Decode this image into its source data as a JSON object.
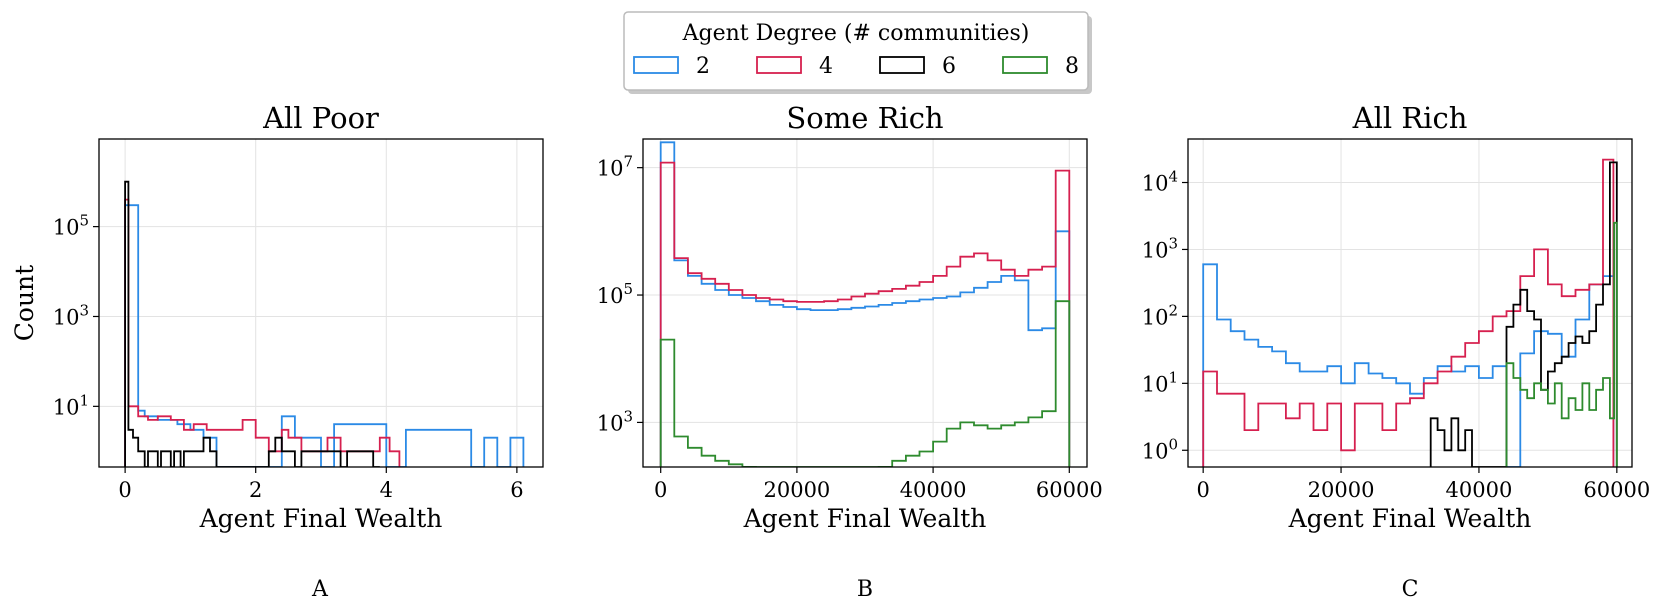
{
  "legend": {
    "title": "Agent Degree (# communities)",
    "placement": "top-center",
    "entries": [
      {
        "label": "2",
        "color": "#2b8ae6"
      },
      {
        "label": "4",
        "color": "#d6204f"
      },
      {
        "label": "6",
        "color": "#000000"
      },
      {
        "label": "8",
        "color": "#2e8b2e"
      }
    ]
  },
  "chart_data": [
    {
      "type": "step-histogram",
      "title": "All Poor",
      "xlabel": "Agent Final Wealth",
      "ylabel": "Count",
      "panel_label": "A",
      "yscale": "log",
      "grid": true,
      "xlim": [
        -0.4,
        6.4
      ],
      "ylim_log10": [
        -0.35,
        6.95
      ],
      "xticks": [
        {
          "v": 0,
          "t": "0"
        },
        {
          "v": 2,
          "t": "2"
        },
        {
          "v": 4,
          "t": "4"
        },
        {
          "v": 6,
          "t": "6"
        }
      ],
      "yticks": [
        {
          "e": 1,
          "t": "10^1"
        },
        {
          "e": 3,
          "t": "10^3"
        },
        {
          "e": 5,
          "t": "10^5"
        }
      ],
      "series": [
        {
          "name": "2",
          "color": "#2b8ae6",
          "edges": [
            0,
            0.2,
            0.3,
            0.5,
            0.8,
            1.0,
            1.2,
            1.4,
            2.2,
            2.4,
            2.6,
            3.0,
            3.2,
            4.0,
            4.3,
            5.3,
            5.5,
            5.7,
            5.9,
            6.1
          ],
          "counts": [
            300000,
            8,
            6,
            5,
            4,
            3,
            2,
            0,
            0,
            6,
            2,
            0,
            4,
            0,
            3,
            0,
            2,
            0,
            2
          ]
        },
        {
          "name": "4",
          "color": "#d6204f",
          "edges": [
            0,
            0.05,
            0.2,
            0.35,
            0.5,
            0.7,
            0.9,
            1.05,
            1.25,
            1.6,
            1.8,
            2.0,
            2.2,
            2.4,
            2.5,
            2.7,
            2.9,
            3.1,
            3.3,
            3.5,
            3.7,
            3.9,
            4.05,
            4.2
          ],
          "counts": [
            400000,
            10,
            6,
            5,
            6,
            5,
            3,
            4,
            3,
            3,
            5,
            2,
            1,
            3,
            2,
            1,
            1,
            2,
            1,
            1,
            1,
            2,
            1
          ]
        },
        {
          "name": "6",
          "color": "#000000",
          "edges": [
            0,
            0.05,
            0.12,
            0.2,
            0.3,
            0.35,
            0.5,
            0.55,
            0.7,
            0.75,
            0.85,
            0.9,
            1.2,
            1.3,
            1.4,
            2.2,
            2.3,
            2.4,
            2.6,
            2.7,
            3.3,
            3.4,
            3.8,
            3.9
          ],
          "counts": [
            1000000,
            3,
            2,
            1,
            0,
            1,
            0,
            1,
            0,
            1,
            0,
            1,
            2,
            1,
            0,
            1,
            2,
            1,
            0,
            1,
            0,
            1,
            0
          ]
        }
      ]
    },
    {
      "type": "step-histogram",
      "title": "Some Rich",
      "xlabel": "Agent Final Wealth",
      "ylabel": "",
      "panel_label": "B",
      "yscale": "log",
      "grid": true,
      "xlim": [
        -2600,
        62600
      ],
      "ylim_log10": [
        2.3,
        7.45
      ],
      "xticks": [
        {
          "v": 0,
          "t": "0"
        },
        {
          "v": 20000,
          "t": "20000"
        },
        {
          "v": 40000,
          "t": "40000"
        },
        {
          "v": 60000,
          "t": "60000"
        }
      ],
      "yticks": [
        {
          "e": 3,
          "t": "10^3"
        },
        {
          "e": 5,
          "t": "10^5"
        },
        {
          "e": 7,
          "t": "10^7"
        }
      ],
      "series": [
        {
          "name": "2",
          "color": "#2b8ae6",
          "bin_start": 0,
          "bin_width": 2000,
          "counts": [
            25000000,
            350000,
            200000,
            150000,
            120000,
            100000,
            90000,
            80000,
            70000,
            65000,
            60000,
            58000,
            58000,
            60000,
            63000,
            66000,
            70000,
            75000,
            80000,
            85000,
            90000,
            95000,
            110000,
            130000,
            160000,
            200000,
            170000,
            28000,
            30000,
            1000000
          ]
        },
        {
          "name": "4",
          "color": "#d6204f",
          "bin_start": 0,
          "bin_width": 2000,
          "counts": [
            12000000,
            380000,
            220000,
            180000,
            150000,
            120000,
            100000,
            90000,
            85000,
            80000,
            78000,
            78000,
            80000,
            85000,
            95000,
            105000,
            115000,
            125000,
            140000,
            160000,
            200000,
            280000,
            400000,
            450000,
            350000,
            250000,
            200000,
            250000,
            280000,
            9000000
          ]
        },
        {
          "name": "8",
          "color": "#2e8b2e",
          "bin_start": 0,
          "bin_width": 2000,
          "counts": [
            20000,
            600,
            400,
            300,
            250,
            220,
            200,
            180,
            160,
            150,
            140,
            140,
            150,
            130,
            140,
            160,
            200,
            250,
            300,
            350,
            500,
            800,
            1000,
            900,
            800,
            900,
            1000,
            1200,
            1500,
            80000
          ]
        }
      ]
    },
    {
      "type": "step-histogram",
      "title": "All Rich",
      "xlabel": "Agent Final Wealth",
      "ylabel": "",
      "panel_label": "C",
      "yscale": "log",
      "grid": true,
      "xlim": [
        -2200,
        62200
      ],
      "ylim_log10": [
        -0.25,
        4.65
      ],
      "xticks": [
        {
          "v": 0,
          "t": "0"
        },
        {
          "v": 20000,
          "t": "20000"
        },
        {
          "v": 40000,
          "t": "40000"
        },
        {
          "v": 60000,
          "t": "60000"
        }
      ],
      "yticks": [
        {
          "e": 0,
          "t": "10^0"
        },
        {
          "e": 1,
          "t": "10^1"
        },
        {
          "e": 2,
          "t": "10^2"
        },
        {
          "e": 3,
          "t": "10^3"
        },
        {
          "e": 4,
          "t": "10^4"
        }
      ],
      "series": [
        {
          "name": "2",
          "color": "#2b8ae6",
          "edges": [
            0,
            2000,
            4000,
            6000,
            8000,
            10000,
            12000,
            14000,
            16000,
            18000,
            20000,
            22000,
            24000,
            26000,
            28000,
            30000,
            32000,
            34000,
            36000,
            38000,
            40000,
            42000,
            44000,
            46000,
            48000,
            50000,
            52000,
            54000,
            56000,
            58000,
            59500
          ],
          "counts": [
            600,
            90,
            60,
            45,
            35,
            30,
            20,
            15,
            15,
            18,
            10,
            20,
            14,
            12,
            10,
            7,
            12,
            18,
            15,
            18,
            12,
            18,
            0,
            28,
            60,
            55,
            25,
            90,
            300,
            400
          ]
        },
        {
          "name": "4",
          "color": "#d6204f",
          "edges": [
            0,
            2000,
            4000,
            6000,
            8000,
            10000,
            12000,
            14000,
            16000,
            18000,
            20000,
            22000,
            24000,
            26000,
            28000,
            30000,
            32000,
            34000,
            36000,
            38000,
            40000,
            42000,
            44000,
            46000,
            48000,
            50000,
            52000,
            54000,
            56000,
            58000,
            59500
          ],
          "counts": [
            15,
            7,
            7,
            2,
            5,
            5,
            3,
            5,
            2,
            5,
            1,
            5,
            5,
            2,
            5,
            6,
            10,
            15,
            25,
            40,
            60,
            100,
            120,
            400,
            1000,
            300,
            200,
            250,
            300,
            22000
          ]
        },
        {
          "name": "6",
          "color": "#000000",
          "edges": [
            33000,
            34000,
            35000,
            36000,
            37000,
            38000,
            39000,
            44000,
            45000,
            46000,
            47000,
            48000,
            49000,
            50000,
            51000,
            52000,
            53000,
            54000,
            55000,
            56000,
            57000,
            58000,
            59000,
            60000
          ],
          "counts": [
            3,
            2,
            1,
            3,
            1,
            2,
            0,
            70,
            150,
            250,
            120,
            90,
            8,
            15,
            20,
            25,
            40,
            50,
            40,
            60,
            150,
            300,
            20000
          ]
        },
        {
          "name": "8",
          "color": "#2e8b2e",
          "edges": [
            44000,
            45000,
            46000,
            47000,
            48000,
            49000,
            50000,
            51000,
            52000,
            53000,
            54000,
            55000,
            56000,
            57000,
            58000,
            59000,
            59600,
            60000
          ],
          "counts": [
            20,
            12,
            8,
            6,
            10,
            8,
            5,
            10,
            3,
            6,
            4,
            10,
            4,
            8,
            12,
            3,
            2500
          ]
        }
      ]
    }
  ]
}
